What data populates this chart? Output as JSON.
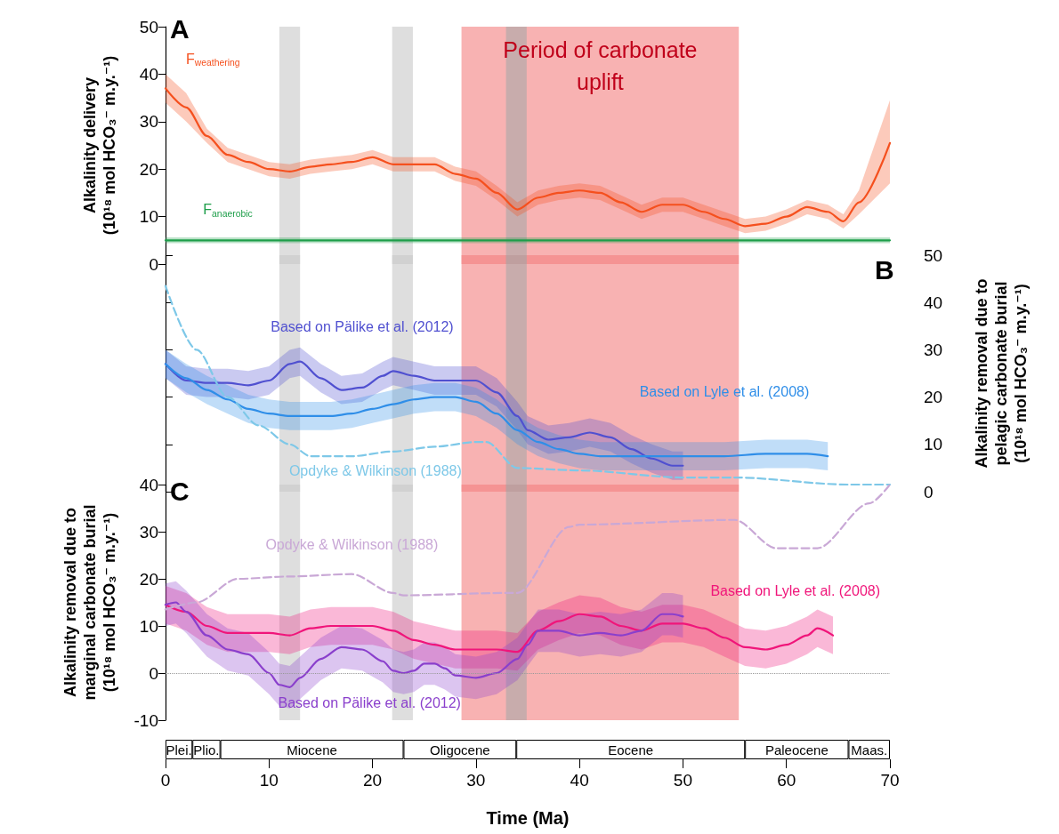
{
  "chart_data": [
    {
      "type": "line",
      "title": "A",
      "ylabel": "Alkalinity delivery (10¹⁸ mol HCO₃⁻ m.y.⁻¹)",
      "xlim": [
        0,
        70
      ],
      "ylim": [
        0,
        50
      ],
      "yticks": [
        0,
        10,
        20,
        30,
        40,
        50
      ],
      "tick_labels": "y",
      "marker": "none",
      "bands": [
        {
          "axis": "x",
          "from": 28.6,
          "to": 55.4,
          "label": "Period of carbonate uplift",
          "color": "#f47f7f"
        },
        {
          "axis": "x",
          "from": 11,
          "to": 13,
          "color": "#c8c8c8"
        },
        {
          "axis": "x",
          "from": 21.9,
          "to": 23.9,
          "color": "#c8c8c8"
        },
        {
          "axis": "x",
          "from": 32.9,
          "to": 34.9,
          "color": "#a8a8a8"
        }
      ],
      "series": [
        {
          "name": "F$_{weathering}$",
          "color": "#f5501e",
          "x": [
            0,
            2,
            4,
            6,
            8,
            10,
            12,
            14,
            16,
            18,
            20,
            22,
            24,
            26,
            28,
            30,
            32,
            34,
            36,
            38,
            40,
            42,
            44,
            46,
            48,
            50,
            52,
            54,
            56,
            58,
            60,
            62,
            64,
            65.5,
            67,
            70
          ],
          "values": [
            37,
            33,
            27,
            23,
            21.5,
            20,
            19.5,
            20.5,
            21,
            21.5,
            22.5,
            21,
            21,
            21,
            19,
            18,
            15,
            11.5,
            14,
            15,
            15.5,
            15,
            13,
            11,
            12.5,
            12.5,
            11,
            9.5,
            8,
            8.5,
            10,
            12,
            11,
            9,
            13,
            25.5
          ],
          "lower": [
            34,
            30,
            25.5,
            21.5,
            20,
            18.5,
            18,
            19,
            19.5,
            20,
            21,
            19.5,
            19.5,
            19.5,
            17.5,
            16.5,
            13.5,
            10,
            12.5,
            13.5,
            14,
            13.5,
            11.5,
            9.5,
            11,
            11,
            9.5,
            8,
            6.5,
            7,
            8.5,
            10.5,
            9.5,
            7.5,
            10.5,
            17
          ],
          "upper": [
            40,
            36,
            28.5,
            24.5,
            23,
            21.5,
            21,
            22,
            22.5,
            23,
            24,
            22.5,
            22.5,
            22.5,
            20.5,
            19.5,
            16.5,
            13,
            15.5,
            16.5,
            17,
            16.5,
            14.5,
            12.5,
            14,
            14,
            12.5,
            11,
            9.5,
            10,
            11.5,
            13.5,
            12.5,
            10.5,
            15.5,
            34.5
          ]
        },
        {
          "name": "F$_{anaerobic}$",
          "color": "#1e9e4a",
          "x": [
            0,
            70
          ],
          "values": [
            5,
            5
          ],
          "lower": [
            4.4,
            4.4
          ],
          "upper": [
            5.6,
            5.6
          ]
        }
      ]
    },
    {
      "type": "line",
      "title": "B",
      "y2label": "Alkalinity removal due to pelagic carbonate burial (10¹⁸ mol HCO₃⁻ m.y.⁻¹)",
      "xlim": [
        0,
        70
      ],
      "y2lim": [
        0,
        50
      ],
      "y2ticks": [
        0,
        10,
        20,
        30,
        40,
        50
      ],
      "tick_labels": "y",
      "marker": "none",
      "bands": [
        {
          "axis": "x",
          "from": 28.6,
          "to": 55.4,
          "color": "#f47f7f"
        },
        {
          "axis": "x",
          "from": 11,
          "to": 13,
          "color": "#c8c8c8"
        },
        {
          "axis": "x",
          "from": 21.9,
          "to": 23.9,
          "color": "#c8c8c8"
        },
        {
          "axis": "x",
          "from": 32.9,
          "to": 34.9,
          "color": "#a8a8a8"
        }
      ],
      "series": [
        {
          "name": "Based on Pälike et al. (2012)",
          "color": "#5050d0",
          "axis": "y2",
          "x": [
            0,
            2,
            4,
            6,
            8,
            10,
            12,
            13,
            15,
            17,
            19,
            21,
            22,
            24,
            26,
            28,
            30,
            32,
            34,
            35,
            37,
            39,
            41,
            43,
            45,
            47,
            49,
            50
          ],
          "values": [
            27,
            23.5,
            23,
            23,
            22.5,
            23.5,
            27,
            27.5,
            24,
            21.5,
            22,
            24.5,
            25.5,
            24.5,
            23.5,
            23.5,
            23.5,
            21,
            16,
            13,
            11,
            11.5,
            12.5,
            11.5,
            9,
            7,
            5.5,
            5.5
          ],
          "lower": [
            24,
            20.5,
            20,
            20,
            19.5,
            20.5,
            24,
            24.5,
            21,
            18.5,
            19,
            21.5,
            22.5,
            21.5,
            20.5,
            20.5,
            20.5,
            18,
            13,
            10,
            8,
            8.5,
            9.5,
            8.5,
            6,
            4,
            2.5,
            2.5
          ],
          "upper": [
            30,
            26.5,
            26,
            26,
            25.5,
            26.5,
            30,
            30.5,
            27,
            24.5,
            25,
            27.5,
            28.5,
            27.5,
            26.5,
            26.5,
            26.5,
            24,
            19,
            16,
            14,
            14.5,
            15.5,
            14.5,
            12,
            10,
            8.5,
            8.5
          ]
        },
        {
          "name": "Based on Lyle et al. (2008)",
          "color": "#2f8ee8",
          "axis": "y2",
          "x": [
            0,
            2,
            4,
            6,
            8,
            10,
            12,
            14,
            16,
            18,
            20,
            22,
            24,
            26,
            28,
            30,
            32,
            34,
            36,
            38,
            40,
            42,
            46,
            50,
            54,
            58,
            62,
            64
          ],
          "values": [
            27,
            24,
            21.5,
            19.5,
            17.5,
            16.5,
            16,
            16,
            16,
            16.5,
            17.5,
            18.5,
            19.5,
            20,
            20,
            19,
            16.5,
            13,
            10.5,
            9,
            8,
            7.5,
            7.5,
            7.5,
            7.5,
            8,
            8,
            7.5
          ],
          "lower": [
            24,
            21,
            18.5,
            16.5,
            14.5,
            13.5,
            13,
            13,
            13,
            13.5,
            14.5,
            15.5,
            16.5,
            17,
            17,
            16,
            13.5,
            10,
            7.5,
            6,
            5,
            4.5,
            4.5,
            4.5,
            4.5,
            5,
            5,
            4.5
          ],
          "upper": [
            30,
            27,
            24.5,
            22.5,
            20.5,
            19.5,
            19,
            19,
            19,
            19.5,
            20.5,
            21.5,
            22.5,
            23,
            23,
            22,
            19.5,
            16,
            13.5,
            12,
            11,
            10.5,
            10.5,
            10.5,
            10.5,
            11,
            11,
            10.5
          ]
        },
        {
          "name": "Opdyke & Wilkinson (1988)",
          "color": "#7ec8e8",
          "axis": "y2",
          "line_style": "dashed",
          "x": [
            0,
            3,
            6,
            9,
            12,
            14,
            18,
            22,
            26,
            30,
            31,
            34,
            40,
            50,
            55,
            66,
            70
          ],
          "values": [
            43.5,
            30,
            20,
            14,
            10,
            7.5,
            7.5,
            8.5,
            9.5,
            10.5,
            10.5,
            5,
            4.5,
            3,
            3,
            1.5,
            1.5
          ]
        }
      ]
    },
    {
      "type": "line",
      "title": "C",
      "ylabel": "Alkalinity removal due to marginal carbonate burial (10¹⁸ mol HCO₃⁻ m.y.⁻¹)",
      "xlim": [
        0,
        70
      ],
      "ylim": [
        -10,
        40
      ],
      "yticks": [
        -10,
        0,
        10,
        20,
        30,
        40
      ],
      "tick_labels": "y",
      "marker": "none",
      "ref_lines": [
        {
          "axis": "y",
          "value": 0,
          "color": "#999999",
          "line_style": "dotted"
        }
      ],
      "bands": [
        {
          "axis": "x",
          "from": 28.6,
          "to": 55.4,
          "color": "#f47f7f"
        },
        {
          "axis": "x",
          "from": 11,
          "to": 13,
          "color": "#c8c8c8"
        },
        {
          "axis": "x",
          "from": 21.9,
          "to": 23.9,
          "color": "#c8c8c8"
        },
        {
          "axis": "x",
          "from": 32.9,
          "to": 34.9,
          "color": "#a8a8a8"
        }
      ],
      "series": [
        {
          "name": "Based on Lyle et al. (2008)",
          "color": "#f0157a",
          "x": [
            0,
            2,
            4,
            6,
            8,
            10,
            12,
            14,
            16,
            18,
            20,
            22,
            24,
            26,
            28,
            30,
            32,
            34,
            36,
            38,
            40,
            42,
            44,
            46,
            48,
            50,
            52,
            54,
            56,
            58,
            60,
            62,
            63,
            64.5
          ],
          "values": [
            14.5,
            13,
            10,
            8.5,
            8.5,
            8.5,
            8,
            9.5,
            10,
            10,
            10,
            9,
            7,
            6,
            5,
            5,
            5,
            4.5,
            9,
            11,
            12.5,
            12,
            10,
            9,
            10.5,
            10.5,
            9.5,
            7.5,
            5.5,
            5,
            6,
            8,
            9.5,
            8
          ],
          "lower": [
            10.5,
            9,
            6,
            4.5,
            4.5,
            4.5,
            4,
            5.5,
            6,
            6,
            6,
            5,
            3,
            2,
            1,
            1,
            1,
            0.5,
            5,
            7,
            8.5,
            8,
            6,
            5,
            6.5,
            6.5,
            5.5,
            3.5,
            1.5,
            1,
            2,
            4,
            5.5,
            4
          ],
          "upper": [
            18.5,
            17,
            14,
            12.5,
            12.5,
            12.5,
            12,
            13.5,
            14,
            14,
            14,
            13,
            11,
            10,
            9,
            9,
            9,
            8.5,
            13,
            15,
            16.5,
            16,
            14,
            13,
            14.5,
            14.5,
            13.5,
            11.5,
            9.5,
            9,
            10,
            12,
            13.5,
            12
          ]
        },
        {
          "name": "Based on Pälike et al. (2012)",
          "color": "#8a3fcc",
          "x": [
            0,
            1,
            2,
            4,
            6,
            8,
            10,
            11,
            12,
            13,
            15,
            17,
            19,
            21,
            22,
            23,
            24,
            25,
            26,
            27,
            28,
            30,
            32,
            34,
            35,
            36,
            38,
            40,
            42,
            44,
            46,
            48,
            49,
            50
          ],
          "values": [
            14.5,
            15,
            13,
            8,
            5,
            4,
            0,
            -2.5,
            -3,
            -1,
            3,
            5.5,
            5,
            2.5,
            0.5,
            0,
            0.5,
            2,
            2,
            1,
            -0.5,
            -1,
            0,
            3,
            6,
            9,
            9,
            8,
            8.5,
            8,
            9,
            12.5,
            12.5,
            12
          ],
          "lower": [
            10,
            10.5,
            8.5,
            3.5,
            0.5,
            -0.5,
            -4.5,
            -7,
            -7.5,
            -5.5,
            -1.5,
            1,
            0.5,
            -2,
            -4,
            -4.5,
            -4,
            -2.5,
            -2.5,
            -3.5,
            -5,
            -5.5,
            -4.5,
            -1.5,
            1.5,
            4.5,
            4.5,
            3.5,
            4,
            3.5,
            4.5,
            8,
            8,
            7.5
          ],
          "upper": [
            19,
            19.5,
            17.5,
            12.5,
            9.5,
            8.5,
            4.5,
            2,
            1.5,
            3.5,
            7.5,
            10,
            9.5,
            7,
            5,
            4.5,
            5,
            6.5,
            6.5,
            5.5,
            4,
            3.5,
            4.5,
            7.5,
            10.5,
            13.5,
            13.5,
            12.5,
            13,
            12.5,
            13.5,
            17,
            17,
            16.5
          ]
        },
        {
          "name": "Opdyke & Wilkinson (1988)",
          "color": "#c9a8d6",
          "line_style": "dashed",
          "x": [
            0,
            3,
            7,
            12,
            18,
            22,
            23,
            33,
            34,
            39,
            40,
            55,
            59,
            63,
            68,
            70
          ],
          "values": [
            13.5,
            15,
            20,
            20.5,
            21,
            17,
            16.5,
            17,
            17,
            31,
            31.5,
            32.5,
            26.5,
            26.5,
            36,
            40
          ]
        }
      ]
    },
    {
      "type": "bar",
      "orientation": "horizontal",
      "stacked": true,
      "xlabel": "Time (Ma)",
      "xlim": [
        0,
        70
      ],
      "xticks": [
        0,
        10,
        20,
        30,
        40,
        50,
        60,
        70
      ],
      "tick_labels": "x",
      "categories": [
        null
      ],
      "series": [
        {
          "name": "Plei.",
          "color": "#ffffff",
          "values": [
            2.6
          ]
        },
        {
          "name": "Plio.",
          "color": "#ffffff",
          "values": [
            2.7
          ]
        },
        {
          "name": "Miocene",
          "color": "#ffffff",
          "values": [
            17.7
          ]
        },
        {
          "name": "Oligocene",
          "color": "#ffffff",
          "values": [
            10.9
          ]
        },
        {
          "name": "Eocene",
          "color": "#ffffff",
          "values": [
            22.1
          ]
        },
        {
          "name": "Paleocene",
          "color": "#ffffff",
          "values": [
            10
          ]
        },
        {
          "name": "Maas.",
          "color": "#ffffff",
          "values": [
            4
          ]
        }
      ]
    }
  ]
}
